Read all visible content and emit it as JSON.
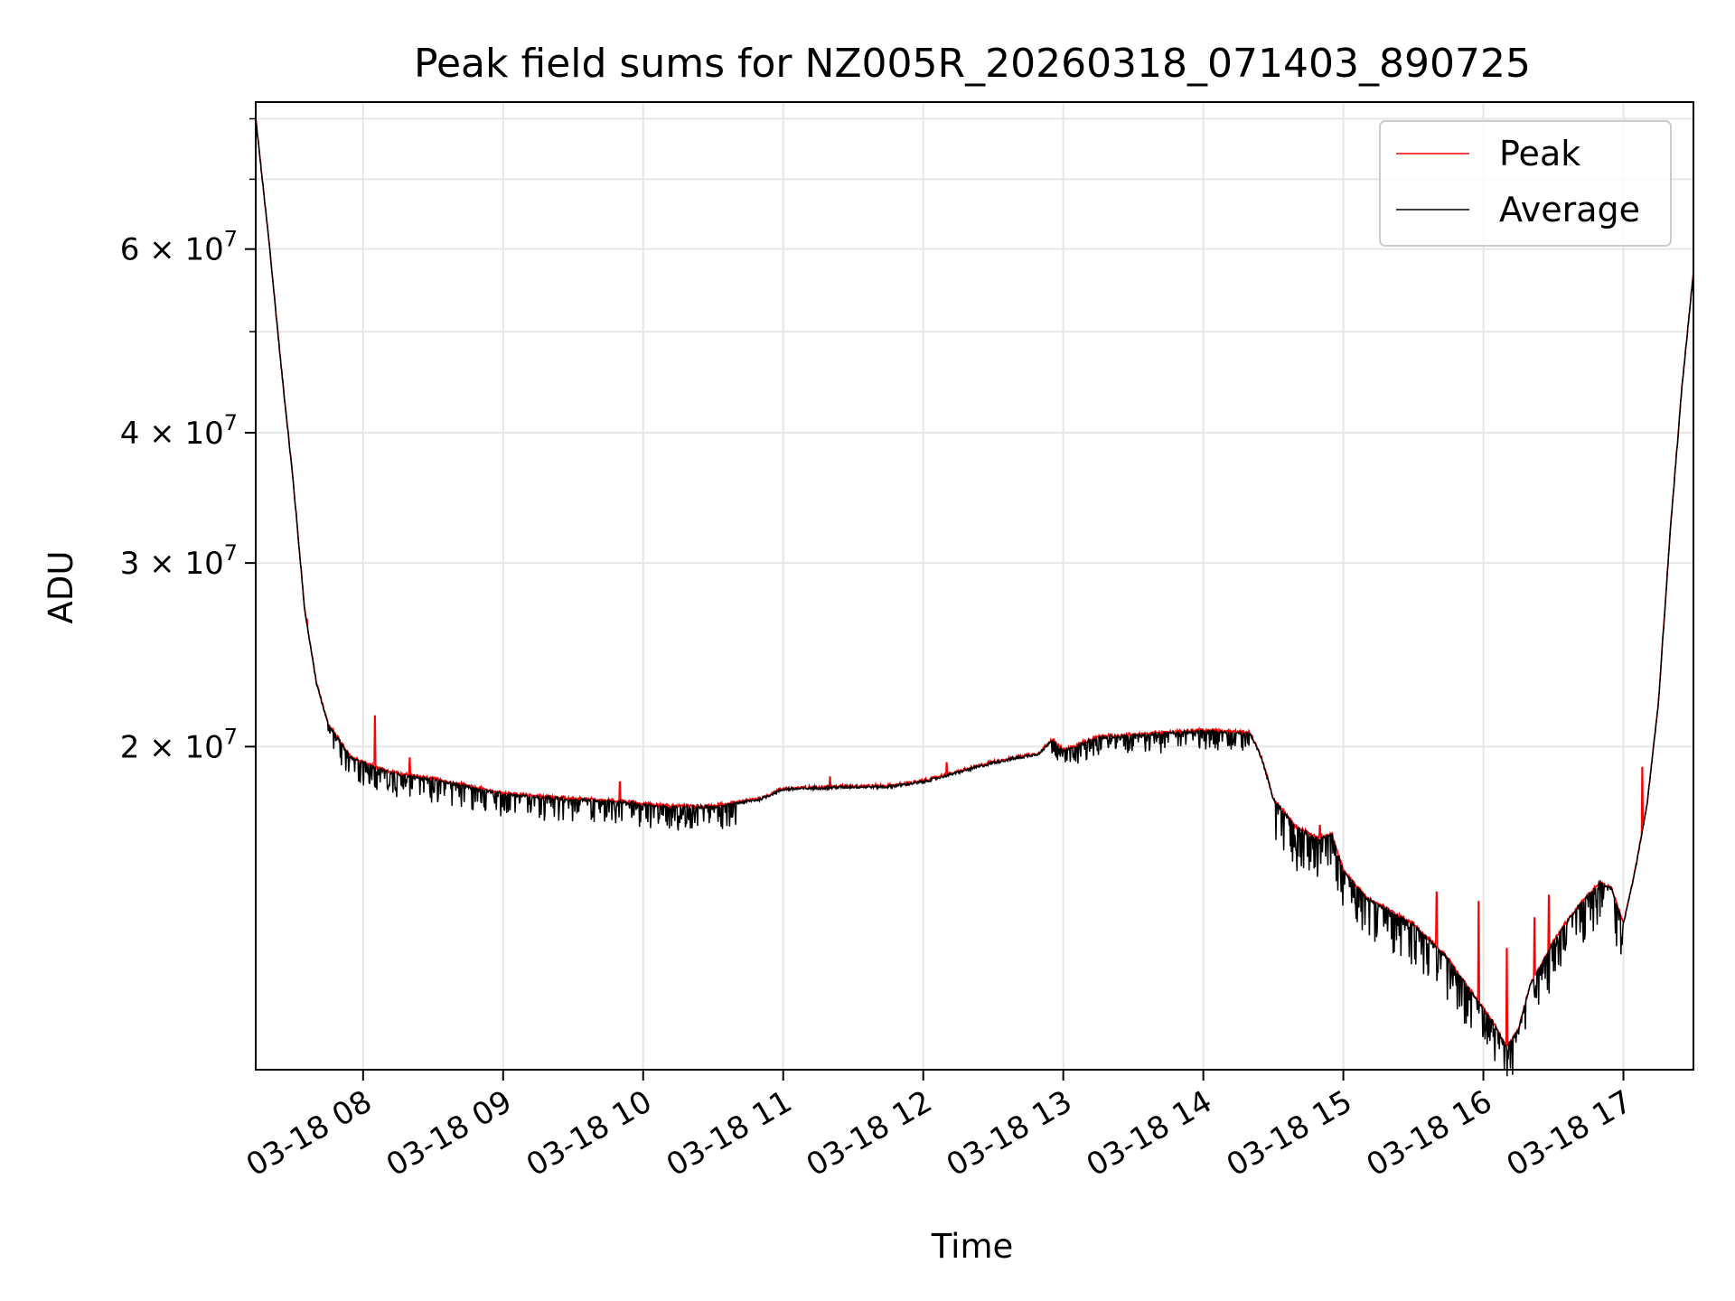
{
  "chart_data": {
    "type": "line",
    "title": "Peak field sums for NZ005R_20260318_071403_890725",
    "xlabel": "Time",
    "ylabel": "ADU",
    "scale_y": "log",
    "xlim": [
      "2026-03-18 07:14",
      "2026-03-18 17:30"
    ],
    "ylim": [
      9800000,
      83000000
    ],
    "grid": true,
    "legend_position": "top-right",
    "x_ticks": [
      "03-18 08",
      "03-18 09",
      "03-18 10",
      "03-18 11",
      "03-18 12",
      "03-18 13",
      "03-18 14",
      "03-18 15",
      "03-18 16",
      "03-18 17"
    ],
    "x_tick_hours": [
      8,
      9,
      10,
      11,
      12,
      13,
      14,
      15,
      16,
      17
    ],
    "y_ticks": [
      {
        "value": 20000000,
        "mantissa": "2",
        "exponent": "7"
      },
      {
        "value": 30000000,
        "mantissa": "3",
        "exponent": "7"
      },
      {
        "value": 40000000,
        "mantissa": "4",
        "exponent": "7"
      },
      {
        "value": 60000000,
        "mantissa": "6",
        "exponent": "7"
      }
    ],
    "y_minor_ticks": [
      50000000,
      70000000,
      80000000
    ],
    "series": [
      {
        "name": "Peak",
        "color": "#ff0000"
      },
      {
        "name": "Average",
        "color": "#000000"
      }
    ],
    "average_curve": [
      [
        "07:14",
        80000000
      ],
      [
        "07:20",
        60000000
      ],
      [
        "07:25",
        46000000
      ],
      [
        "07:30",
        36000000
      ],
      [
        "07:35",
        27000000
      ],
      [
        "07:40",
        23000000
      ],
      [
        "07:45",
        21000000
      ],
      [
        "07:55",
        19500000
      ],
      [
        "08:10",
        18900000
      ],
      [
        "08:30",
        18600000
      ],
      [
        "08:50",
        18200000
      ],
      [
        "09:00",
        18000000
      ],
      [
        "09:30",
        17800000
      ],
      [
        "09:50",
        17700000
      ],
      [
        "10:10",
        17500000
      ],
      [
        "10:30",
        17500000
      ],
      [
        "10:50",
        17800000
      ],
      [
        "11:00",
        18200000
      ],
      [
        "11:30",
        18300000
      ],
      [
        "11:45",
        18300000
      ],
      [
        "12:00",
        18500000
      ],
      [
        "12:30",
        19300000
      ],
      [
        "12:50",
        19700000
      ],
      [
        "12:55",
        20300000
      ],
      [
        "13:00",
        19800000
      ],
      [
        "13:15",
        20400000
      ],
      [
        "13:30",
        20500000
      ],
      [
        "14:00",
        20700000
      ],
      [
        "14:20",
        20600000
      ],
      [
        "14:25",
        19500000
      ],
      [
        "14:30",
        17800000
      ],
      [
        "14:40",
        16700000
      ],
      [
        "14:50",
        16300000
      ],
      [
        "14:55",
        16500000
      ],
      [
        "15:00",
        15200000
      ],
      [
        "15:10",
        14300000
      ],
      [
        "15:20",
        13900000
      ],
      [
        "15:30",
        13500000
      ],
      [
        "15:45",
        12500000
      ],
      [
        "15:55",
        11600000
      ],
      [
        "16:00",
        11200000
      ],
      [
        "16:05",
        10800000
      ],
      [
        "16:10",
        10300000
      ],
      [
        "16:15",
        10700000
      ],
      [
        "16:20",
        11800000
      ],
      [
        "16:30",
        13000000
      ],
      [
        "16:40",
        14000000
      ],
      [
        "16:50",
        14800000
      ],
      [
        "16:55",
        14600000
      ],
      [
        "17:00",
        13500000
      ],
      [
        "17:05",
        15200000
      ],
      [
        "17:10",
        17500000
      ],
      [
        "17:15",
        22000000
      ],
      [
        "17:20",
        32000000
      ],
      [
        "17:25",
        44000000
      ],
      [
        "17:30",
        57000000
      ]
    ],
    "dip_regions": [
      {
        "start": "07:45",
        "end": "10:40",
        "depth": 0.05
      },
      {
        "start": "12:55",
        "end": "14:20",
        "depth": 0.04
      },
      {
        "start": "14:30",
        "end": "17:00",
        "depth": 0.09
      }
    ],
    "peak_spikes": [
      [
        "07:36",
        26500000
      ],
      [
        "08:05",
        21400000
      ],
      [
        "08:20",
        19500000
      ],
      [
        "09:50",
        18500000
      ],
      [
        "11:20",
        18700000
      ],
      [
        "12:10",
        19300000
      ],
      [
        "14:50",
        16800000
      ],
      [
        "15:40",
        14500000
      ],
      [
        "15:58",
        14200000
      ],
      [
        "16:10",
        12800000
      ],
      [
        "16:22",
        13700000
      ],
      [
        "16:28",
        14400000
      ],
      [
        "17:08",
        19100000
      ]
    ]
  }
}
